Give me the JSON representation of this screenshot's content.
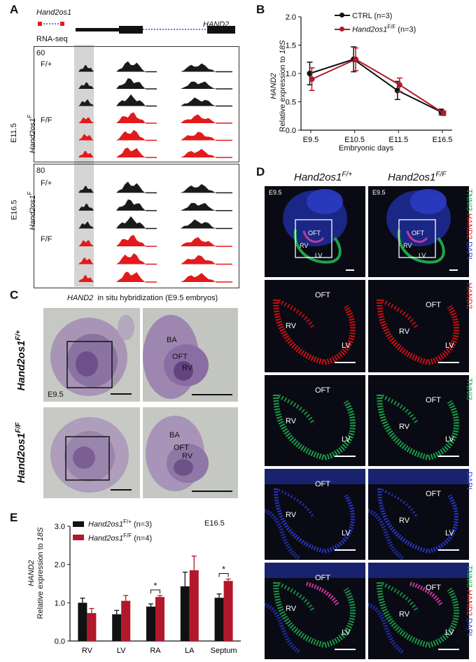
{
  "panels": {
    "A": {
      "label": "A",
      "gene_left": "Hand2os1",
      "gene_right": "HAND2",
      "track_title": "RNA-seq",
      "group1": {
        "scale": "60",
        "stage": "E11.5",
        "genotype": "Hand2os1",
        "genotype_sup": "F",
        "wt": "F/+",
        "mut": "F/F"
      },
      "group2": {
        "scale": "80",
        "stage": "E16.5",
        "genotype": "Hand2os1",
        "genotype_sup": "F",
        "wt": "F/+",
        "mut": "F/F"
      },
      "colors": {
        "wt": "#1a1a1a",
        "mut": "#e31a1c",
        "highlight": "#cfcfcf"
      }
    },
    "B": {
      "label": "B",
      "legend": [
        {
          "name": "CTRL",
          "n": "(n=3)",
          "color": "#111111"
        },
        {
          "name": "Hand2os1",
          "sup": "F/F",
          "n": "(n=3)",
          "color": "#b2182b"
        }
      ],
      "ylabel_gene": "HAND2",
      "ylabel_rest": "Relative expression to ",
      "ylabel_ref": "18S",
      "xlabel": "Embryonic days"
    },
    "C": {
      "label": "C",
      "title_gene": "HAND2",
      "title_rest": "in situ hybridization (E9.5 embryos)",
      "row1_genotype": "Hand2os1",
      "row1_sup": "F/+",
      "row2_genotype": "Hand2os1",
      "row2_sup": "F/F",
      "stage_label": "E9.5",
      "zoom_labels": [
        "BA",
        "OFT",
        "RV"
      ]
    },
    "D": {
      "label": "D",
      "col1_genotype": "Hand2os1",
      "col1_sup": "F/+",
      "col2_genotype": "Hand2os1",
      "col2_sup": "F/F",
      "stage_label": "E9.5",
      "regions": [
        "OFT",
        "RV",
        "LV"
      ],
      "row_channels": [
        [
          {
            "text": "TNNI3 ",
            "color": "#1aa64a"
          },
          {
            "text": "HAND2 ",
            "color": "#e31a1c"
          },
          {
            "text": "DAPI",
            "color": "#2b3cc4"
          }
        ],
        [
          {
            "text": "HAND2",
            "color": "#e31a1c"
          }
        ],
        [
          {
            "text": "TNNI3",
            "color": "#1aa64a"
          }
        ],
        [
          {
            "text": "DAPI",
            "color": "#2b3cc4"
          }
        ],
        [
          {
            "text": "TNNI3 ",
            "color": "#1aa64a"
          },
          {
            "text": "HAND2 ",
            "color": "#e31a1c"
          },
          {
            "text": "DAPI",
            "color": "#2b3cc4"
          }
        ]
      ]
    },
    "E": {
      "label": "E",
      "stage_label": "E16.5",
      "legend": [
        {
          "name": "Hand2os1",
          "sup": "F/+",
          "n": "(n=3)",
          "color": "#111111"
        },
        {
          "name": "Hand2os1",
          "sup": "F/F",
          "n": "(n=4)",
          "color": "#b2182b"
        }
      ],
      "ylabel_gene": "HAND2",
      "ylabel_rest": "Relative expression to ",
      "ylabel_ref": "18S",
      "sig_mark": "*"
    }
  },
  "chart_data": [
    {
      "type": "line",
      "panel": "B",
      "categories": [
        "E9.5",
        "E10.5",
        "E11.5",
        "E16.5"
      ],
      "series": [
        {
          "name": "CTRL (n=3)",
          "values": [
            1.0,
            1.25,
            0.7,
            0.32
          ],
          "errors": [
            0.2,
            0.22,
            0.16,
            0.05
          ]
        },
        {
          "name": "Hand2os1 F/F (n=3)",
          "values": [
            0.9,
            1.25,
            0.8,
            0.3
          ],
          "errors": [
            0.2,
            0.2,
            0.12,
            0.04
          ]
        }
      ],
      "ylim": [
        0,
        2.0
      ],
      "yticks": [
        "0.0",
        "0.5",
        "1.0",
        "1.5",
        "2.0"
      ],
      "xlabel": "Embryonic days",
      "ylabel": "HAND2 Relative expression to 18S",
      "legend_position": "top-left"
    },
    {
      "type": "bar",
      "panel": "E",
      "categories": [
        "RV",
        "LV",
        "RA",
        "LA",
        "Septum"
      ],
      "series": [
        {
          "name": "Hand2os1 F/+ (n=3)",
          "values": [
            1.0,
            0.7,
            0.9,
            1.43,
            1.13
          ],
          "errors": [
            0.12,
            0.1,
            0.07,
            0.37,
            0.1
          ]
        },
        {
          "name": "Hand2os1 F/F (n=4)",
          "values": [
            0.73,
            1.05,
            1.15,
            1.85,
            1.57
          ],
          "errors": [
            0.12,
            0.14,
            0.04,
            0.37,
            0.05
          ]
        }
      ],
      "significant": [
        "RA",
        "Septum"
      ],
      "ylim": [
        0,
        3.0
      ],
      "yticks": [
        "0.0",
        "1.0",
        "2.0",
        "3.0"
      ],
      "ylabel": "HAND2 Relative expression to 18S",
      "legend_position": "top-left"
    }
  ]
}
